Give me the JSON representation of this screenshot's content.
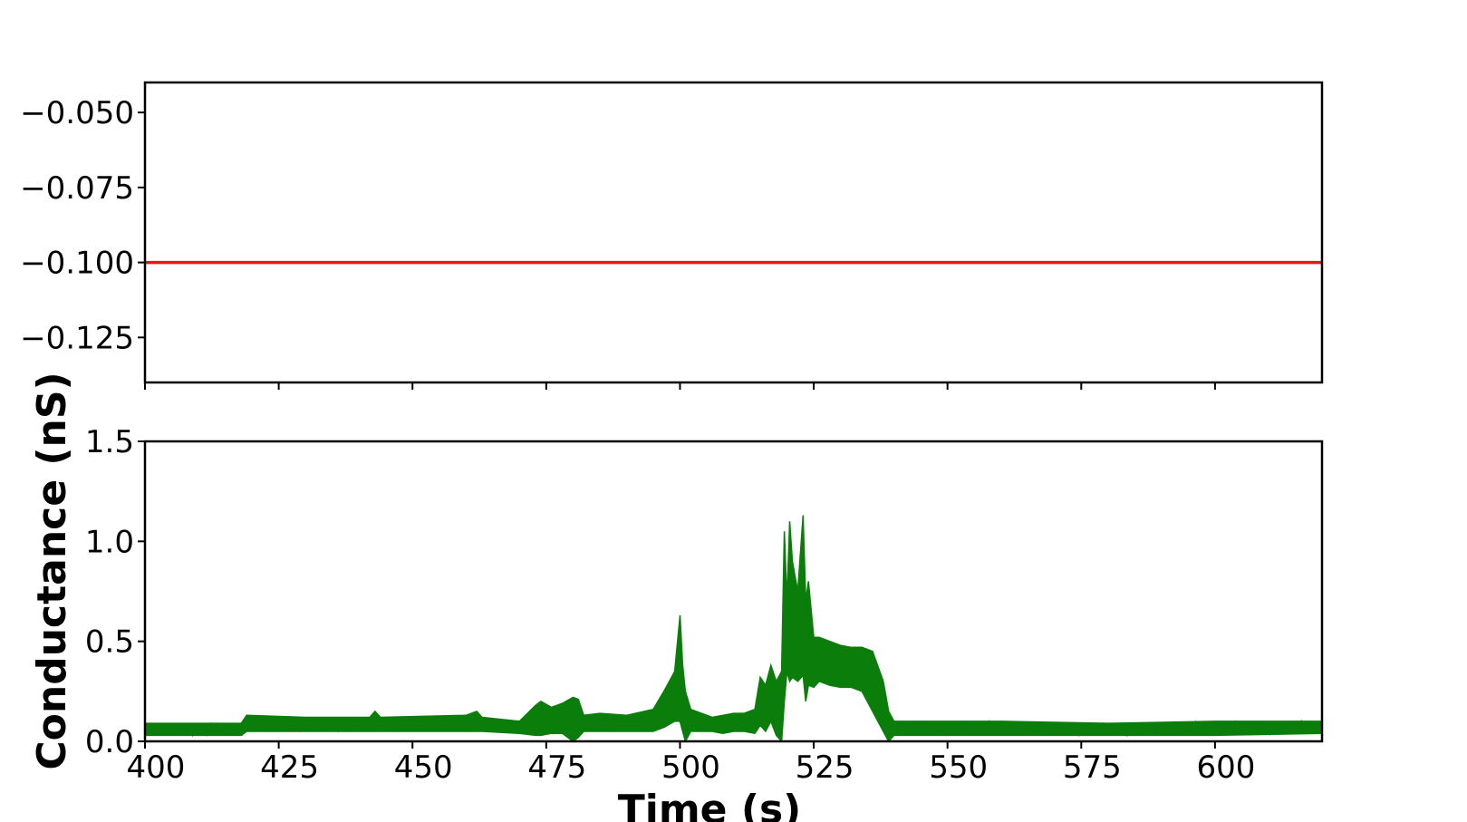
{
  "chart_data": [
    {
      "type": "line",
      "panel": "top",
      "ylabel": "",
      "ylim": [
        -0.14,
        -0.04
      ],
      "xlim": [
        400,
        620
      ],
      "yticks": [
        -0.05,
        -0.075,
        -0.1,
        -0.125
      ],
      "ytick_labels": [
        "−0.050",
        "−0.075",
        "−0.100",
        "−0.125"
      ],
      "grid": false,
      "series": [
        {
          "color": "#e31a1c",
          "x": [
            400,
            620
          ],
          "y": [
            -0.1,
            -0.1
          ]
        }
      ]
    },
    {
      "type": "line",
      "panel": "bottom",
      "xlabel": "Time (s)",
      "ylabel": "Conductance (nS)",
      "ylim": [
        0,
        1.5
      ],
      "xlim": [
        400,
        620
      ],
      "xticks": [
        400,
        425,
        450,
        475,
        500,
        525,
        550,
        575,
        600
      ],
      "xtick_labels": [
        "400",
        "425",
        "450",
        "475",
        "500",
        "525",
        "550",
        "575",
        "600"
      ],
      "yticks": [
        0,
        0.5,
        1.0,
        1.5
      ],
      "ytick_labels": [
        "0.0",
        "0.5",
        "1.0",
        "1.5"
      ],
      "grid": false,
      "series": [
        {
          "color": "#0a7d0a",
          "envelope": {
            "x": [
              400,
              418,
              419,
              430,
              442,
              443,
              444,
              460,
              462,
              463,
              470,
              473,
              474,
              476,
              478,
              480,
              481,
              482,
              485,
              490,
              495,
              497,
              499,
              500,
              500.5,
              501,
              502,
              504,
              506,
              508,
              510,
              512,
              514,
              515,
              516,
              517,
              518,
              519,
              519.5,
              520,
              520.5,
              521,
              522,
              523,
              523.5,
              524,
              525,
              526,
              528,
              530,
              532,
              534,
              536,
              538,
              539,
              540,
              545,
              560,
              580,
              600,
              620
            ],
            "upper": [
              0.09,
              0.09,
              0.13,
              0.12,
              0.12,
              0.15,
              0.12,
              0.13,
              0.15,
              0.12,
              0.1,
              0.18,
              0.2,
              0.17,
              0.19,
              0.22,
              0.21,
              0.13,
              0.14,
              0.13,
              0.16,
              0.25,
              0.35,
              0.63,
              0.38,
              0.25,
              0.16,
              0.14,
              0.12,
              0.13,
              0.14,
              0.14,
              0.16,
              0.32,
              0.28,
              0.38,
              0.3,
              0.35,
              1.05,
              0.7,
              1.1,
              0.9,
              0.75,
              1.13,
              0.7,
              0.8,
              0.52,
              0.52,
              0.5,
              0.48,
              0.47,
              0.47,
              0.45,
              0.3,
              0.15,
              0.1,
              0.1,
              0.1,
              0.09,
              0.1,
              0.1
            ],
            "lower": [
              0.03,
              0.03,
              0.05,
              0.05,
              0.05,
              0.05,
              0.05,
              0.05,
              0.05,
              0.05,
              0.04,
              0.03,
              0.03,
              0.04,
              0.04,
              0.0,
              0.02,
              0.05,
              0.05,
              0.05,
              0.05,
              0.07,
              0.1,
              0.1,
              0.05,
              0.0,
              0.05,
              0.05,
              0.05,
              0.04,
              0.05,
              0.05,
              0.04,
              0.08,
              0.05,
              0.1,
              0.03,
              0.0,
              0.2,
              0.35,
              0.3,
              0.32,
              0.3,
              0.33,
              0.2,
              0.28,
              0.27,
              0.3,
              0.28,
              0.27,
              0.27,
              0.25,
              0.15,
              0.05,
              0.0,
              0.03,
              0.03,
              0.03,
              0.03,
              0.03,
              0.04
            ]
          }
        }
      ]
    }
  ]
}
